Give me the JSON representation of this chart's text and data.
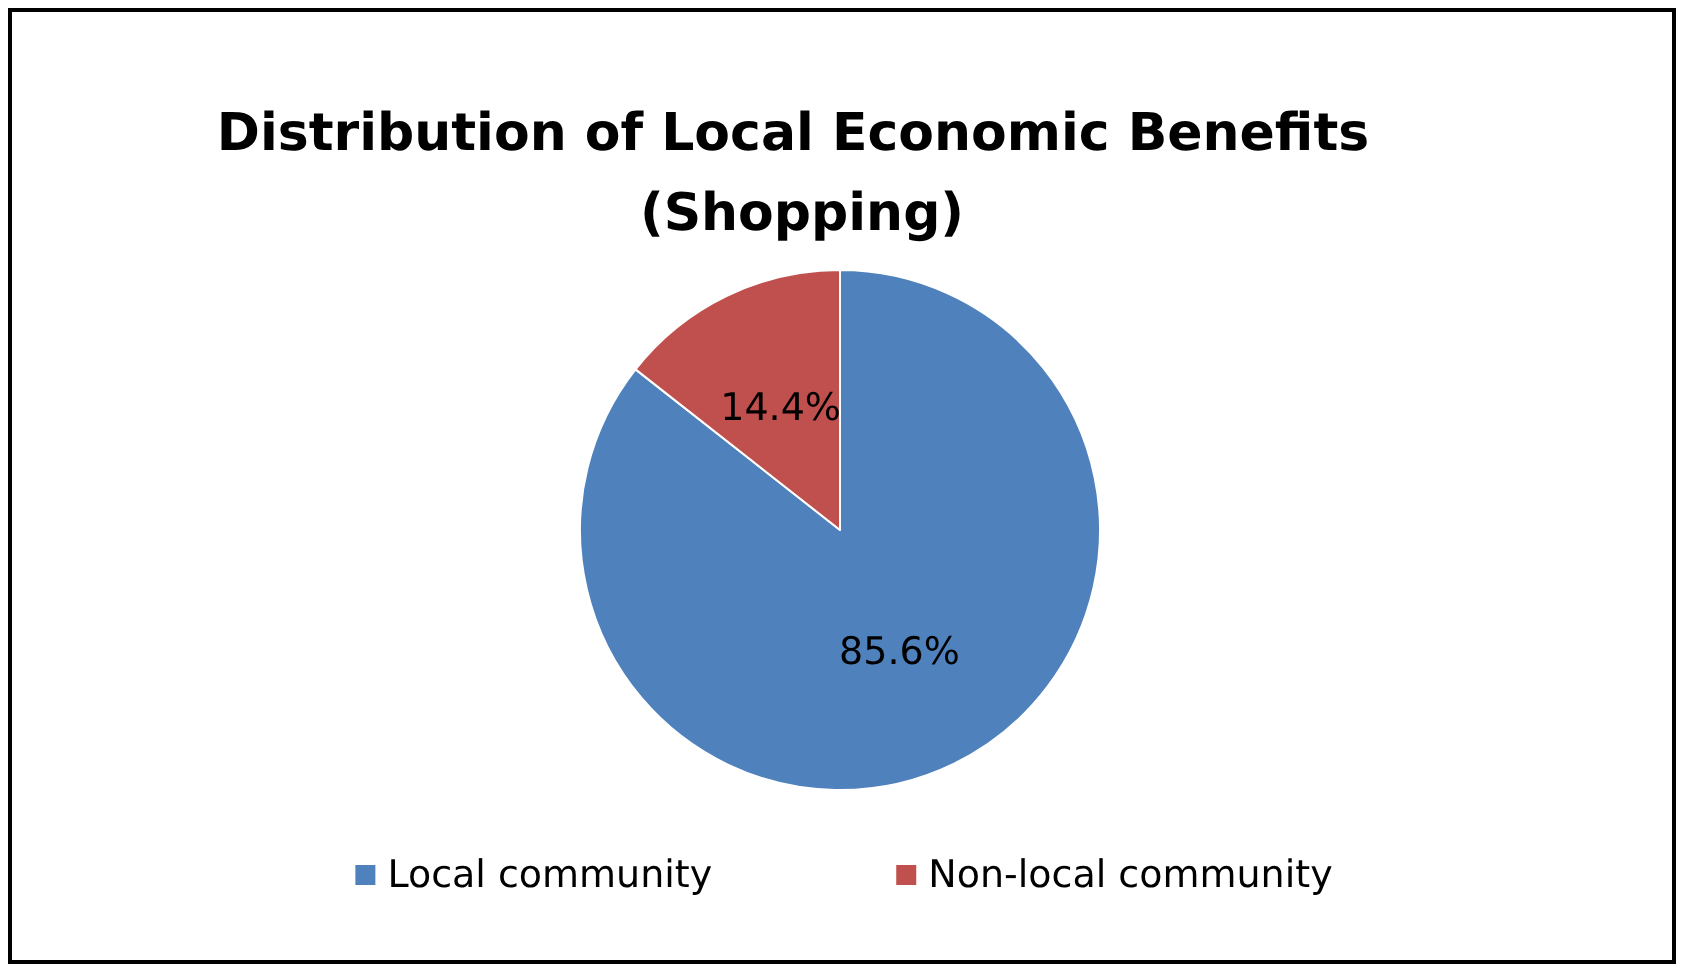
{
  "chart_data": {
    "type": "pie",
    "title": "Distribution of Local Economic Benefits (Shopping)",
    "categories": [
      "Local community",
      "Non-local community"
    ],
    "values": [
      85.6,
      14.4
    ],
    "colors": [
      "#4f81bd",
      "#c0504d"
    ],
    "value_labels": [
      "85.6%",
      "14.4%"
    ],
    "legend": "bottom"
  }
}
